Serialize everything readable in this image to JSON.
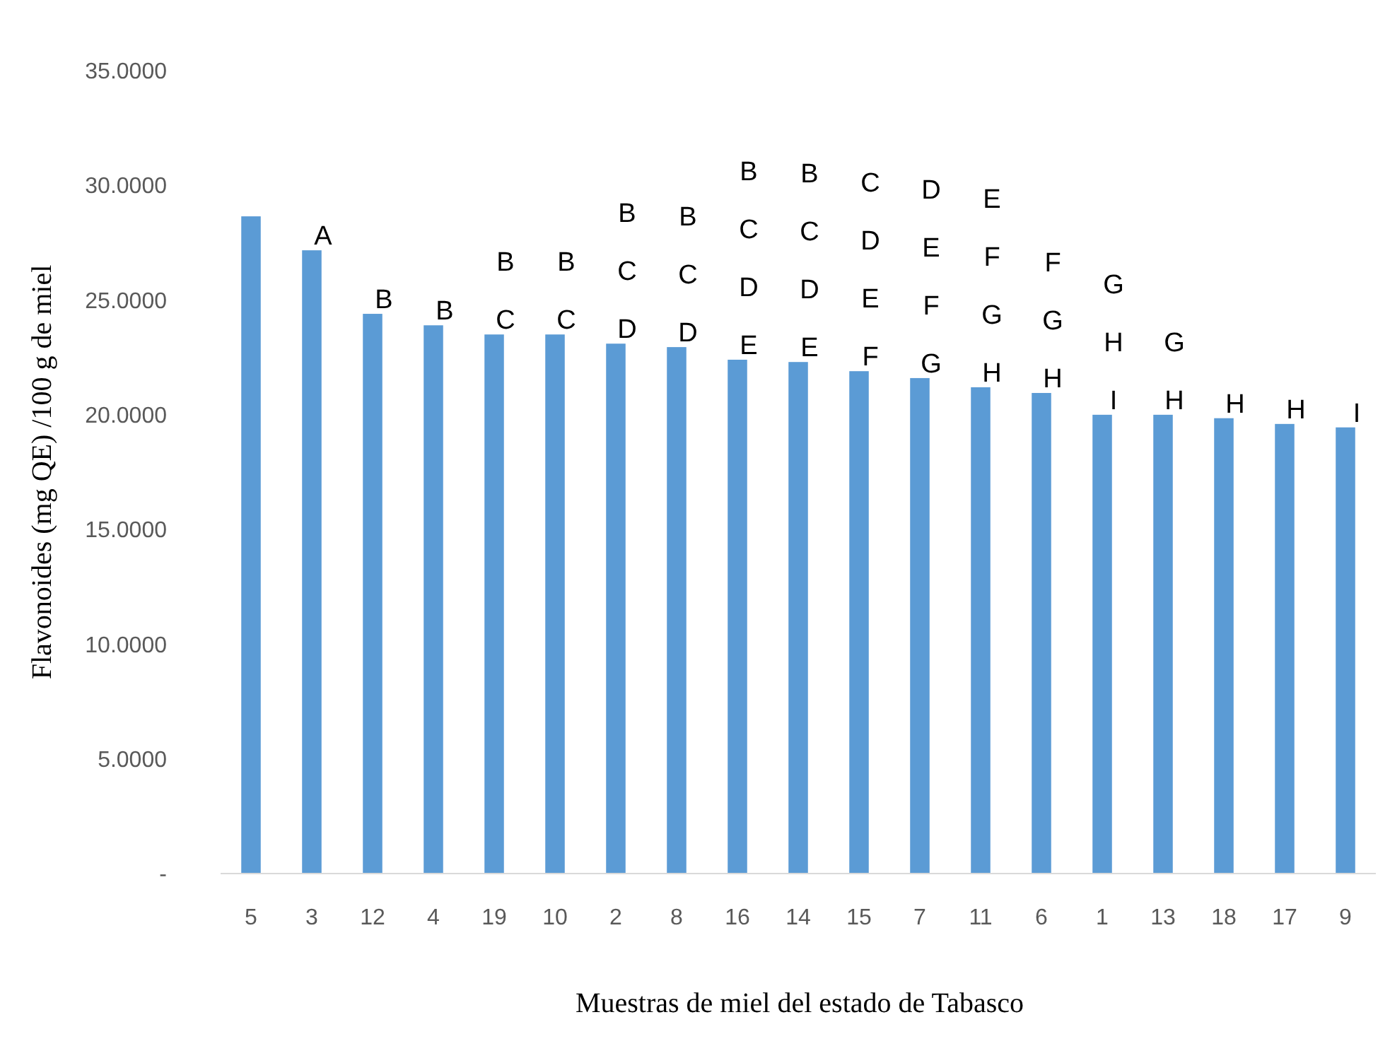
{
  "chart_data": {
    "type": "bar",
    "xlabel": "Muestras de miel del estado de Tabasco",
    "ylabel": "Flavonoides (mg QE) /100 g de miel",
    "categories": [
      "5",
      "3",
      "12",
      "4",
      "19",
      "10",
      "2",
      "8",
      "16",
      "14",
      "15",
      "7",
      "11",
      "6",
      "1",
      "13",
      "18",
      "17",
      "9"
    ],
    "values": [
      28.65,
      27.17,
      24.4,
      23.9,
      23.5,
      23.5,
      23.1,
      22.95,
      22.4,
      22.3,
      21.9,
      21.6,
      21.2,
      20.95,
      20.0,
      20.0,
      19.85,
      19.6,
      19.45
    ],
    "color": "#5b9bd5",
    "ylim": [
      0,
      35
    ],
    "yticks": [
      {
        "value": 0,
        "label": "-"
      },
      {
        "value": 5,
        "label": "5.0000"
      },
      {
        "value": 10,
        "label": "10.0000"
      },
      {
        "value": 15,
        "label": "15.0000"
      },
      {
        "value": 20,
        "label": "20.0000"
      },
      {
        "value": 25,
        "label": "25.0000"
      },
      {
        "value": 30,
        "label": "30.0000"
      },
      {
        "value": 35,
        "label": "35.0000"
      }
    ],
    "grid": false,
    "annotations": [
      {
        "text": "A",
        "x": "3",
        "y": 27.17
      },
      {
        "text": "B",
        "x": "12",
        "y": 24.4
      },
      {
        "text": "B",
        "x": "4",
        "y": 23.9
      },
      {
        "text": "B\nC",
        "x": "19",
        "y": 23.5
      },
      {
        "text": "B\nC",
        "x": "10",
        "y": 23.5
      },
      {
        "text": "B\nC\nD",
        "x": "2",
        "y": 23.1
      },
      {
        "text": "B\nC\nD",
        "x": "8",
        "y": 22.95
      },
      {
        "text": "B\nC\nD\nE",
        "x": "16",
        "y": 22.4
      },
      {
        "text": "B\nC\nD\nE",
        "x": "14",
        "y": 22.3
      },
      {
        "text": "C\nD\nE\nF",
        "x": "15",
        "y": 21.9
      },
      {
        "text": "D\nE\nF\nG",
        "x": "7",
        "y": 21.6
      },
      {
        "text": "E\nF\nG\nH",
        "x": "11",
        "y": 21.2
      },
      {
        "text": "F\nG\nH",
        "x": "6",
        "y": 20.95
      },
      {
        "text": "G\nH\nI",
        "x": "1",
        "y": 20.0
      },
      {
        "text": "G\nH",
        "x": "13",
        "y": 20.0
      },
      {
        "text": "H",
        "x": "18",
        "y": 19.85
      },
      {
        "text": "H",
        "x": "17",
        "y": 19.6
      },
      {
        "text": "I",
        "x": "9",
        "y": 19.45
      }
    ]
  }
}
